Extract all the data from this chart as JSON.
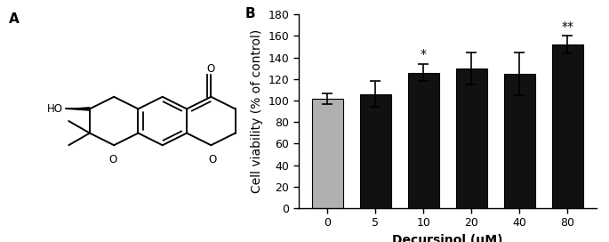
{
  "categories": [
    "0",
    "5",
    "10",
    "20",
    "40",
    "80"
  ],
  "values": [
    102,
    106,
    126,
    130,
    125,
    152
  ],
  "errors": [
    5,
    12,
    8,
    15,
    20,
    8
  ],
  "bar_colors": [
    "#b0b0b0",
    "#111111",
    "#111111",
    "#111111",
    "#111111",
    "#111111"
  ],
  "bar_edgecolors": [
    "#000000",
    "#000000",
    "#000000",
    "#000000",
    "#000000",
    "#000000"
  ],
  "ylabel": "Cell viability (% of control)",
  "xlabel": "Decursinol (μM)",
  "ylim": [
    0,
    180
  ],
  "yticks": [
    0,
    20,
    40,
    60,
    80,
    100,
    120,
    140,
    160,
    180
  ],
  "label_A": "A",
  "label_B": "B",
  "significance": [
    "",
    "",
    "*",
    "",
    "",
    "**"
  ],
  "title_fontsize": 11,
  "axis_fontsize": 10,
  "tick_fontsize": 9,
  "sig_fontsize": 10,
  "lw": 1.4
}
